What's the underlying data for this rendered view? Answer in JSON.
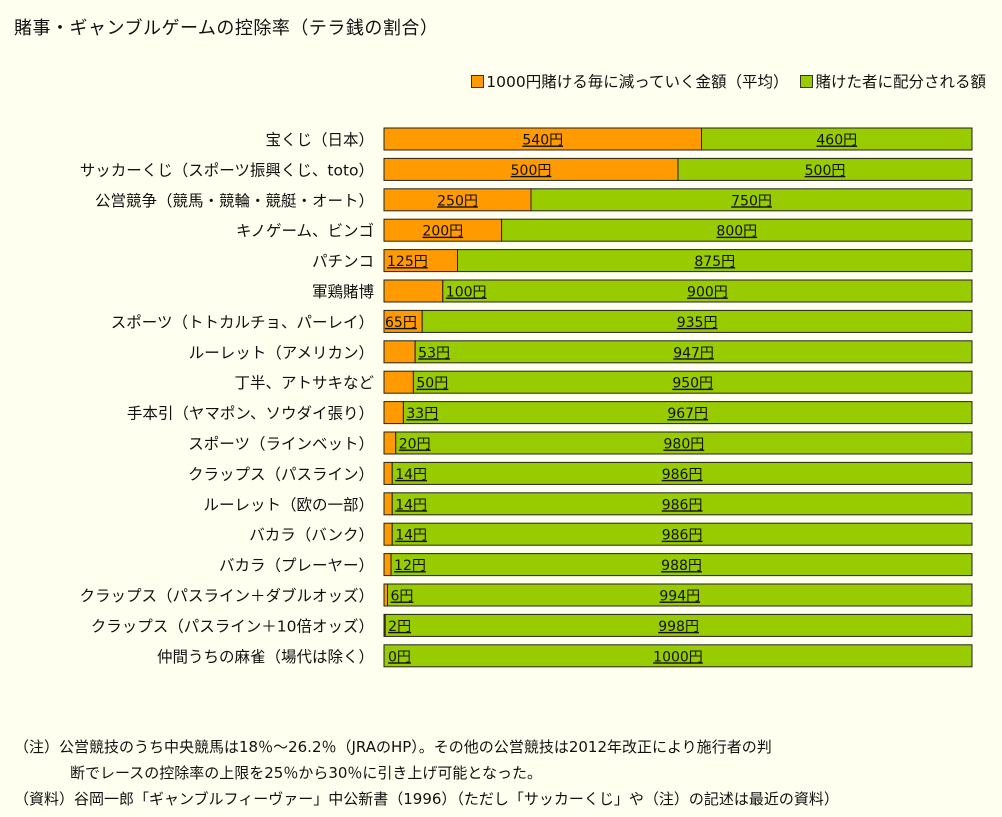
{
  "title": "賭事・ギャンブルゲームの控除率（テラ銭の割合）",
  "colors": {
    "house": "#ff9a00",
    "player": "#99cc00",
    "border": "#222222",
    "background": "#fffff0"
  },
  "chart_data": {
    "type": "bar",
    "orientation": "horizontal",
    "stacked": true,
    "unit": "円",
    "xlim": [
      0,
      1000
    ],
    "grid": false,
    "legend_position": "top-right",
    "categories": [
      "宝くじ（日本）",
      "サッカーくじ（スポーツ振興くじ、toto）",
      "公営競争（競馬・競輪・競艇・オート）",
      "キノゲーム、ビンゴ",
      "パチンコ",
      "軍鶏賭博",
      "スポーツ（トトカルチョ、パーレイ）",
      "ルーレット（アメリカン）",
      "丁半、アトサキなど",
      "手本引（ヤマポン、ソウダイ張り）",
      "スポーツ（ラインベット）",
      "クラップス（パスライン）",
      "ルーレット（欧の一部）",
      "バカラ（バンク）",
      "バカラ（プレーヤー）",
      "クラップス（パスライン＋ダブルオッズ）",
      "クラップス（パスライン＋10倍オッズ）",
      "仲間うちの麻雀（場代は除く）"
    ],
    "series": [
      {
        "name": "1000円賭ける毎に減っていく金額（平均）",
        "color": "#ff9a00",
        "values": [
          540,
          500,
          250,
          200,
          125,
          100,
          65,
          53,
          50,
          33,
          20,
          14,
          14,
          14,
          12,
          6,
          2,
          0
        ]
      },
      {
        "name": "賭けた者に配分される額",
        "color": "#99cc00",
        "values": [
          460,
          500,
          750,
          800,
          875,
          900,
          935,
          947,
          950,
          967,
          980,
          986,
          986,
          986,
          988,
          994,
          998,
          1000
        ]
      }
    ]
  },
  "notes": {
    "line1": "（注）公営競技のうち中央競馬は18％～26.2％（JRAのHP）。その他の公営競技は2012年改正により施行者の判",
    "line2": "断でレースの控除率の上限を25％から30％に引き上げ可能となった。",
    "source": "（資料）谷岡一郎「ギャンブルフィーヴァー」中公新書（1996）（ただし「サッカーくじ」や（注）の記述は最近の資料）"
  }
}
